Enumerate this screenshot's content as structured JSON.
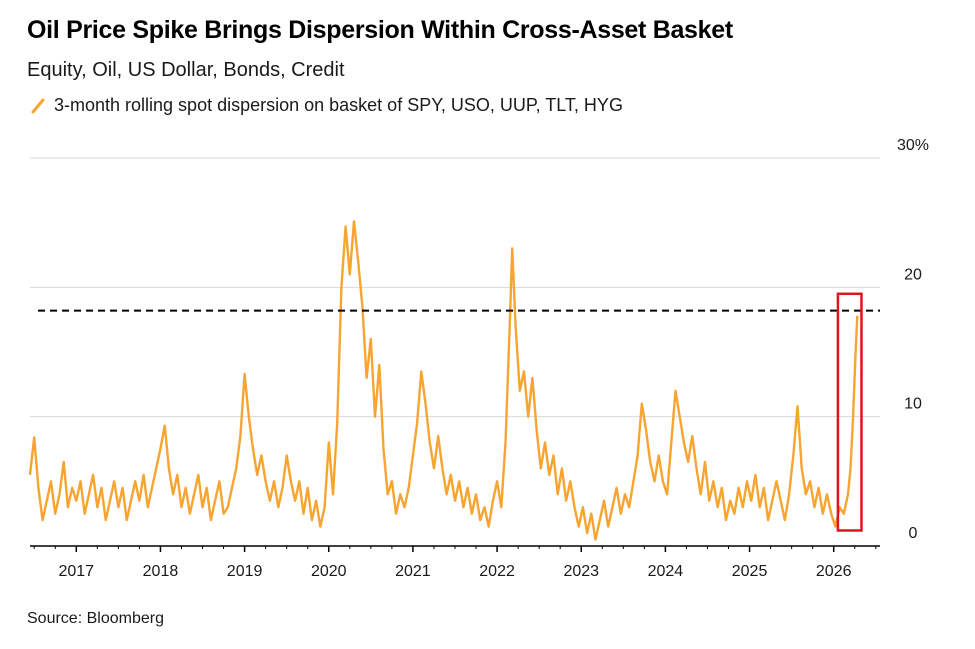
{
  "title": "Oil Price Spike Brings Dispersion Within Cross-Asset Basket",
  "subtitle": "Equity, Oil, US Dollar, Bonds, Credit",
  "source": "Source: Bloomberg",
  "colors": {
    "series": "#f7a431",
    "grid": "#d9d9d9",
    "reference": "#000000",
    "highlight": "#e0141e"
  },
  "chart_data": {
    "type": "line",
    "title": "Oil Price Spike Brings Dispersion Within Cross-Asset Basket",
    "subtitle": "Equity, Oil, US Dollar, Bonds, Credit",
    "xlabel": "",
    "ylabel": "",
    "xlim": [
      2016.45,
      2026.55
    ],
    "ylim": [
      0,
      30
    ],
    "y_ticks": [
      {
        "value": 0,
        "label": "0"
      },
      {
        "value": 10,
        "label": "10"
      },
      {
        "value": 20,
        "label": "20"
      },
      {
        "value": 30,
        "label": "30%"
      }
    ],
    "x_ticks": [
      {
        "value": 2017,
        "label": "2017"
      },
      {
        "value": 2018,
        "label": "2018"
      },
      {
        "value": 2019,
        "label": "2019"
      },
      {
        "value": 2020,
        "label": "2020"
      },
      {
        "value": 2021,
        "label": "2021"
      },
      {
        "value": 2022,
        "label": "2022"
      },
      {
        "value": 2023,
        "label": "2023"
      },
      {
        "value": 2024,
        "label": "2024"
      },
      {
        "value": 2025,
        "label": "2025"
      },
      {
        "value": 2026,
        "label": "2026"
      }
    ],
    "reference_line": {
      "value": 18.2,
      "style": "dashed"
    },
    "highlight_box": {
      "x0": 2026.05,
      "x1": 2026.33,
      "y0": 1.2,
      "y1": 19.5
    },
    "series": [
      {
        "name": "3-month rolling spot dispersion on basket of SPY, USO, UUP, TLT, HYG",
        "points": [
          [
            2016.45,
            5.5
          ],
          [
            2016.5,
            8.4
          ],
          [
            2016.55,
            4.5
          ],
          [
            2016.6,
            2.0
          ],
          [
            2016.65,
            3.5
          ],
          [
            2016.7,
            5.0
          ],
          [
            2016.75,
            2.5
          ],
          [
            2016.8,
            4.0
          ],
          [
            2016.85,
            6.5
          ],
          [
            2016.9,
            3.0
          ],
          [
            2016.95,
            4.5
          ],
          [
            2017.0,
            3.5
          ],
          [
            2017.05,
            5.0
          ],
          [
            2017.1,
            2.5
          ],
          [
            2017.15,
            4.0
          ],
          [
            2017.2,
            5.5
          ],
          [
            2017.25,
            3.0
          ],
          [
            2017.3,
            4.5
          ],
          [
            2017.35,
            2.0
          ],
          [
            2017.4,
            3.5
          ],
          [
            2017.45,
            5.0
          ],
          [
            2017.5,
            3.0
          ],
          [
            2017.55,
            4.5
          ],
          [
            2017.6,
            2.0
          ],
          [
            2017.65,
            3.5
          ],
          [
            2017.7,
            5.0
          ],
          [
            2017.75,
            3.5
          ],
          [
            2017.8,
            5.5
          ],
          [
            2017.85,
            3.0
          ],
          [
            2017.9,
            4.5
          ],
          [
            2017.95,
            6.0
          ],
          [
            2018.0,
            7.5
          ],
          [
            2018.05,
            9.3
          ],
          [
            2018.1,
            6.0
          ],
          [
            2018.15,
            4.0
          ],
          [
            2018.2,
            5.5
          ],
          [
            2018.25,
            3.0
          ],
          [
            2018.3,
            4.5
          ],
          [
            2018.35,
            2.5
          ],
          [
            2018.4,
            4.0
          ],
          [
            2018.45,
            5.5
          ],
          [
            2018.5,
            3.0
          ],
          [
            2018.55,
            4.5
          ],
          [
            2018.6,
            2.0
          ],
          [
            2018.65,
            3.5
          ],
          [
            2018.7,
            5.0
          ],
          [
            2018.75,
            2.5
          ],
          [
            2018.8,
            3.0
          ],
          [
            2018.85,
            4.5
          ],
          [
            2018.9,
            6.0
          ],
          [
            2018.95,
            8.5
          ],
          [
            2019.0,
            13.3
          ],
          [
            2019.05,
            10.0
          ],
          [
            2019.1,
            7.5
          ],
          [
            2019.15,
            5.5
          ],
          [
            2019.2,
            7.0
          ],
          [
            2019.25,
            5.0
          ],
          [
            2019.3,
            3.5
          ],
          [
            2019.35,
            5.0
          ],
          [
            2019.4,
            3.0
          ],
          [
            2019.45,
            4.5
          ],
          [
            2019.5,
            7.0
          ],
          [
            2019.55,
            5.0
          ],
          [
            2019.6,
            3.5
          ],
          [
            2019.65,
            5.0
          ],
          [
            2019.7,
            2.5
          ],
          [
            2019.75,
            4.5
          ],
          [
            2019.8,
            2.0
          ],
          [
            2019.85,
            3.5
          ],
          [
            2019.9,
            1.5
          ],
          [
            2019.95,
            3.0
          ],
          [
            2020.0,
            8.0
          ],
          [
            2020.05,
            4.0
          ],
          [
            2020.1,
            9.5
          ],
          [
            2020.15,
            20.0
          ],
          [
            2020.2,
            24.7
          ],
          [
            2020.25,
            21.0
          ],
          [
            2020.3,
            25.1
          ],
          [
            2020.35,
            22.0
          ],
          [
            2020.4,
            18.5
          ],
          [
            2020.45,
            13.0
          ],
          [
            2020.5,
            16.0
          ],
          [
            2020.55,
            10.0
          ],
          [
            2020.6,
            14.0
          ],
          [
            2020.65,
            7.5
          ],
          [
            2020.7,
            4.0
          ],
          [
            2020.75,
            5.0
          ],
          [
            2020.8,
            2.5
          ],
          [
            2020.85,
            4.0
          ],
          [
            2020.9,
            3.0
          ],
          [
            2020.95,
            4.5
          ],
          [
            2021.0,
            7.0
          ],
          [
            2021.05,
            9.5
          ],
          [
            2021.1,
            13.5
          ],
          [
            2021.15,
            11.0
          ],
          [
            2021.2,
            8.0
          ],
          [
            2021.25,
            6.0
          ],
          [
            2021.3,
            8.5
          ],
          [
            2021.35,
            6.0
          ],
          [
            2021.4,
            4.0
          ],
          [
            2021.45,
            5.5
          ],
          [
            2021.5,
            3.5
          ],
          [
            2021.55,
            5.0
          ],
          [
            2021.6,
            3.0
          ],
          [
            2021.65,
            4.5
          ],
          [
            2021.7,
            2.5
          ],
          [
            2021.75,
            4.0
          ],
          [
            2021.8,
            2.0
          ],
          [
            2021.85,
            3.0
          ],
          [
            2021.9,
            1.5
          ],
          [
            2021.95,
            3.5
          ],
          [
            2022.0,
            5.0
          ],
          [
            2022.05,
            3.0
          ],
          [
            2022.1,
            8.0
          ],
          [
            2022.15,
            17.0
          ],
          [
            2022.18,
            23.0
          ],
          [
            2022.22,
            17.0
          ],
          [
            2022.27,
            12.0
          ],
          [
            2022.32,
            13.5
          ],
          [
            2022.37,
            10.0
          ],
          [
            2022.42,
            13.0
          ],
          [
            2022.47,
            9.0
          ],
          [
            2022.52,
            6.0
          ],
          [
            2022.57,
            8.0
          ],
          [
            2022.62,
            5.5
          ],
          [
            2022.67,
            7.0
          ],
          [
            2022.72,
            4.0
          ],
          [
            2022.77,
            6.0
          ],
          [
            2022.82,
            3.5
          ],
          [
            2022.87,
            5.0
          ],
          [
            2022.92,
            3.0
          ],
          [
            2022.97,
            1.5
          ],
          [
            2023.02,
            3.0
          ],
          [
            2023.07,
            1.0
          ],
          [
            2023.12,
            2.5
          ],
          [
            2023.17,
            0.5
          ],
          [
            2023.22,
            2.0
          ],
          [
            2023.27,
            3.5
          ],
          [
            2023.32,
            1.5
          ],
          [
            2023.37,
            3.0
          ],
          [
            2023.42,
            4.5
          ],
          [
            2023.47,
            2.5
          ],
          [
            2023.52,
            4.0
          ],
          [
            2023.57,
            3.0
          ],
          [
            2023.62,
            5.0
          ],
          [
            2023.67,
            7.0
          ],
          [
            2023.72,
            11.0
          ],
          [
            2023.77,
            9.0
          ],
          [
            2023.82,
            6.5
          ],
          [
            2023.87,
            5.0
          ],
          [
            2023.92,
            7.0
          ],
          [
            2023.97,
            5.0
          ],
          [
            2024.02,
            4.0
          ],
          [
            2024.07,
            8.0
          ],
          [
            2024.12,
            12.0
          ],
          [
            2024.17,
            10.0
          ],
          [
            2024.22,
            8.0
          ],
          [
            2024.27,
            6.5
          ],
          [
            2024.32,
            8.5
          ],
          [
            2024.37,
            6.0
          ],
          [
            2024.42,
            4.0
          ],
          [
            2024.47,
            6.5
          ],
          [
            2024.52,
            3.5
          ],
          [
            2024.57,
            5.0
          ],
          [
            2024.62,
            3.0
          ],
          [
            2024.67,
            4.5
          ],
          [
            2024.72,
            2.0
          ],
          [
            2024.77,
            3.5
          ],
          [
            2024.82,
            2.5
          ],
          [
            2024.87,
            4.5
          ],
          [
            2024.92,
            3.0
          ],
          [
            2024.97,
            5.0
          ],
          [
            2025.02,
            3.5
          ],
          [
            2025.07,
            5.5
          ],
          [
            2025.12,
            3.0
          ],
          [
            2025.17,
            4.5
          ],
          [
            2025.22,
            2.0
          ],
          [
            2025.27,
            3.5
          ],
          [
            2025.32,
            5.0
          ],
          [
            2025.37,
            3.5
          ],
          [
            2025.42,
            2.0
          ],
          [
            2025.47,
            4.0
          ],
          [
            2025.52,
            7.0
          ],
          [
            2025.57,
            10.8
          ],
          [
            2025.62,
            6.0
          ],
          [
            2025.67,
            4.0
          ],
          [
            2025.72,
            5.0
          ],
          [
            2025.77,
            3.0
          ],
          [
            2025.82,
            4.5
          ],
          [
            2025.87,
            2.5
          ],
          [
            2025.92,
            4.0
          ],
          [
            2025.97,
            2.5
          ],
          [
            2026.02,
            1.5
          ],
          [
            2026.07,
            3.0
          ],
          [
            2026.12,
            2.5
          ],
          [
            2026.17,
            4.0
          ],
          [
            2026.2,
            6.0
          ],
          [
            2026.23,
            10.0
          ],
          [
            2026.26,
            15.0
          ],
          [
            2026.28,
            17.8
          ]
        ]
      }
    ]
  }
}
